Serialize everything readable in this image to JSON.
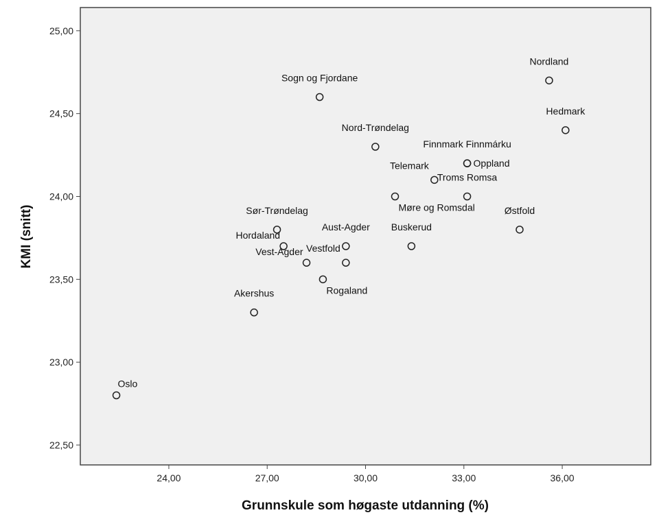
{
  "chart_data": {
    "type": "scatter",
    "title": "",
    "xlabel": "Grunnskule som høgaste utdanning (%)",
    "ylabel": "KMI (snitt)",
    "xlim": [
      21.3,
      38.7
    ],
    "ylim": [
      22.38,
      25.14
    ],
    "xticks": [
      24,
      27,
      30,
      33,
      36
    ],
    "xtick_labels": [
      "24,00",
      "27,00",
      "30,00",
      "33,00",
      "36,00"
    ],
    "yticks": [
      22.5,
      23.0,
      23.5,
      24.0,
      24.5,
      25.0
    ],
    "ytick_labels": [
      "22,50",
      "23,00",
      "23,50",
      "24,00",
      "24,50",
      "25,00"
    ],
    "grid": false,
    "plot_background": "#f0f0f0",
    "marker": "open-circle",
    "points": [
      {
        "label": "Nordland",
        "x": 35.6,
        "y": 24.7,
        "label_pos": "above"
      },
      {
        "label": "Sogn og Fjordane",
        "x": 28.6,
        "y": 24.6,
        "label_pos": "above"
      },
      {
        "label": "Hedmark",
        "x": 36.1,
        "y": 24.4,
        "label_pos": "above"
      },
      {
        "label": "Nord-Trøndelag",
        "x": 30.3,
        "y": 24.3,
        "label_pos": "above"
      },
      {
        "label": "Finnmark Finnmárku",
        "x": 33.1,
        "y": 24.2,
        "label_pos": "above"
      },
      {
        "label": "Oppland",
        "x": 33.1,
        "y": 24.2,
        "label_pos": "right"
      },
      {
        "label": "Telemark",
        "x": 32.1,
        "y": 24.1,
        "label_pos": "above-left"
      },
      {
        "label": "Troms Romsa",
        "x": 33.1,
        "y": 24.0,
        "label_pos": "above"
      },
      {
        "label": "Møre og Romsdal",
        "x": 30.9,
        "y": 24.0,
        "label_pos": "below-right"
      },
      {
        "label": "Sør-Trøndelag",
        "x": 27.3,
        "y": 23.8,
        "label_pos": "above"
      },
      {
        "label": "Østfold",
        "x": 34.7,
        "y": 23.8,
        "label_pos": "above"
      },
      {
        "label": "Aust-Agder",
        "x": 29.4,
        "y": 23.7,
        "label_pos": "above"
      },
      {
        "label": "Buskerud",
        "x": 31.4,
        "y": 23.7,
        "label_pos": "above"
      },
      {
        "label": "Hordaland",
        "x": 27.5,
        "y": 23.7,
        "label_pos": "below-left"
      },
      {
        "label": "Vestfold",
        "x": 29.4,
        "y": 23.6,
        "label_pos": "above-left"
      },
      {
        "label": "Vest-Agder",
        "x": 28.2,
        "y": 23.6,
        "label_pos": "below-left"
      },
      {
        "label": "Rogaland",
        "x": 28.7,
        "y": 23.5,
        "label_pos": "below-right"
      },
      {
        "label": "Akershus",
        "x": 26.6,
        "y": 23.3,
        "label_pos": "above"
      },
      {
        "label": "Oslo",
        "x": 22.4,
        "y": 22.8,
        "label_pos": "above-right"
      }
    ]
  }
}
